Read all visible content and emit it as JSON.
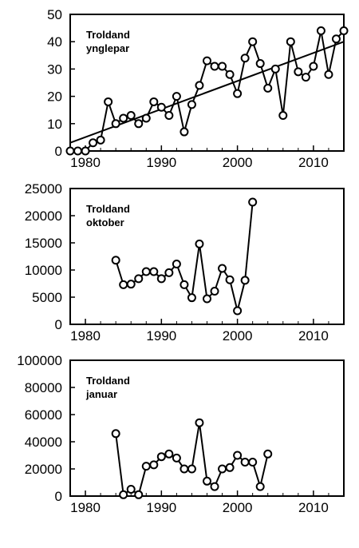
{
  "chart_data": [
    {
      "type": "line",
      "title": "",
      "annotation": [
        "Troldand",
        "ynglepar"
      ],
      "xlabel": "",
      "ylabel": "",
      "xlim": [
        1978,
        2014
      ],
      "ylim": [
        0,
        50
      ],
      "x_ticks": [
        1980,
        1990,
        2000,
        2010
      ],
      "y_ticks": [
        0,
        10,
        20,
        30,
        40,
        50
      ],
      "grid": false,
      "trendline": {
        "x": [
          1978,
          2014
        ],
        "y": [
          3,
          40
        ]
      },
      "series": [
        {
          "x": [
            1978,
            1979,
            1980,
            1981,
            1982,
            1983,
            1984,
            1985,
            1986,
            1987,
            1988,
            1989,
            1990,
            1991,
            1992,
            1993,
            1994,
            1995,
            1996,
            1997,
            1998,
            1999,
            2000,
            2001,
            2002,
            2003,
            2004,
            2005,
            2006,
            2007,
            2008,
            2009,
            2010,
            2011,
            2012,
            2013,
            2014
          ],
          "y": [
            0,
            0,
            0,
            3,
            4,
            18,
            10,
            12,
            13,
            10,
            12,
            18,
            16,
            13,
            20,
            7,
            17,
            24,
            33,
            31,
            31,
            28,
            21,
            34,
            40,
            32,
            23,
            30,
            13,
            40,
            29,
            27,
            31,
            44,
            28,
            41,
            44
          ]
        }
      ]
    },
    {
      "type": "line",
      "title": "",
      "annotation": [
        "Troldand",
        "oktober"
      ],
      "xlabel": "",
      "ylabel": "",
      "xlim": [
        1978,
        2014
      ],
      "ylim": [
        0,
        25000
      ],
      "x_ticks": [
        1980,
        1990,
        2000,
        2010
      ],
      "y_ticks": [
        0,
        5000,
        10000,
        15000,
        20000,
        25000
      ],
      "grid": false,
      "series": [
        {
          "x": [
            1984,
            1985,
            1986,
            1987,
            1988,
            1989,
            1990,
            1991,
            1992,
            1993,
            1994,
            1995,
            1996,
            1997,
            1998,
            1999,
            2000,
            2001,
            2002
          ],
          "y": [
            11800,
            7300,
            7400,
            8400,
            9700,
            9700,
            8400,
            9500,
            11100,
            7300,
            4900,
            14800,
            4700,
            6100,
            10300,
            8200,
            2500,
            8100,
            22500
          ]
        }
      ]
    },
    {
      "type": "line",
      "title": "",
      "annotation": [
        "Troldand",
        "januar"
      ],
      "xlabel": "",
      "ylabel": "",
      "xlim": [
        1978,
        2014
      ],
      "ylim": [
        0,
        100000
      ],
      "x_ticks": [
        1980,
        1990,
        2000,
        2010
      ],
      "y_ticks": [
        0,
        20000,
        40000,
        60000,
        80000,
        100000
      ],
      "grid": false,
      "series": [
        {
          "x": [
            1984,
            1985,
            1986,
            1987,
            1988,
            1989,
            1990,
            1991,
            1992,
            1993,
            1994,
            1995,
            1996,
            1997,
            1998,
            1999,
            2000,
            2001,
            2002,
            2003,
            2004
          ],
          "y": [
            46000,
            1000,
            5000,
            1000,
            22000,
            23000,
            29000,
            31000,
            28000,
            20000,
            20000,
            54000,
            11000,
            7000,
            20000,
            21000,
            30000,
            25000,
            25000,
            7000,
            31000
          ]
        }
      ]
    }
  ]
}
